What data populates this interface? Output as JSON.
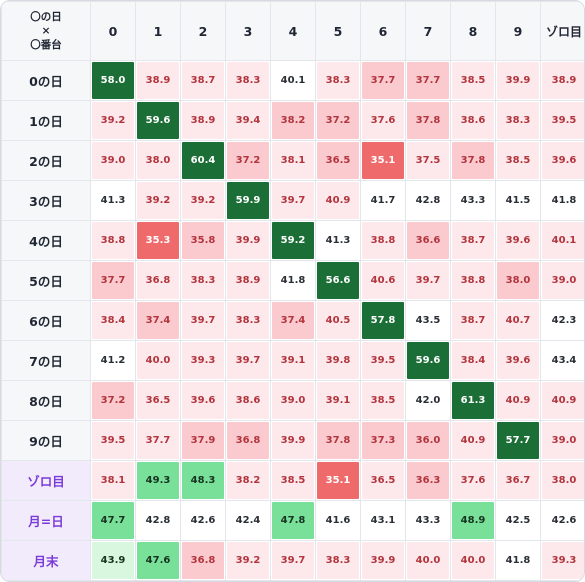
{
  "corner": {
    "line1": "〇の日",
    "line2": "×",
    "line3": "〇番台"
  },
  "columns": [
    "0",
    "1",
    "2",
    "3",
    "4",
    "5",
    "6",
    "7",
    "8",
    "9",
    "ゾロ目"
  ],
  "rows": [
    {
      "label": "0の日",
      "special": false,
      "values": [
        "58.0",
        "38.9",
        "38.7",
        "38.3",
        "40.1",
        "38.3",
        "37.7",
        "37.7",
        "38.5",
        "39.9",
        "38.9"
      ],
      "levels": [
        "g3",
        "r1",
        "r1",
        "r1",
        "n",
        "r1",
        "r2",
        "r2",
        "r1",
        "r1",
        "r1"
      ]
    },
    {
      "label": "1の日",
      "special": false,
      "values": [
        "39.2",
        "59.6",
        "38.9",
        "39.4",
        "38.2",
        "37.2",
        "37.6",
        "37.8",
        "38.6",
        "38.3",
        "39.5"
      ],
      "levels": [
        "r1",
        "g3",
        "r1",
        "r1",
        "r2",
        "r2",
        "r1",
        "r2",
        "r1",
        "r1",
        "r1"
      ]
    },
    {
      "label": "2の日",
      "special": false,
      "values": [
        "39.0",
        "38.0",
        "60.4",
        "37.2",
        "38.1",
        "36.5",
        "35.1",
        "37.5",
        "37.8",
        "38.5",
        "39.6"
      ],
      "levels": [
        "r1",
        "r1",
        "g3",
        "r2",
        "r1",
        "r2",
        "r3",
        "r1",
        "r2",
        "r1",
        "r1"
      ]
    },
    {
      "label": "3の日",
      "special": false,
      "values": [
        "41.3",
        "39.2",
        "39.2",
        "59.9",
        "39.7",
        "40.9",
        "41.7",
        "42.8",
        "43.3",
        "41.5",
        "41.8"
      ],
      "levels": [
        "n",
        "r1",
        "r1",
        "g3",
        "r1",
        "r1",
        "n",
        "n",
        "n",
        "n",
        "n"
      ]
    },
    {
      "label": "4の日",
      "special": false,
      "values": [
        "38.8",
        "35.3",
        "35.8",
        "39.9",
        "59.2",
        "41.3",
        "38.8",
        "36.6",
        "38.7",
        "39.6",
        "40.1"
      ],
      "levels": [
        "r1",
        "r3",
        "r2",
        "r1",
        "g3",
        "n",
        "r1",
        "r2",
        "r1",
        "r1",
        "r1"
      ]
    },
    {
      "label": "5の日",
      "special": false,
      "values": [
        "37.7",
        "36.8",
        "38.3",
        "38.9",
        "41.8",
        "56.6",
        "40.6",
        "39.7",
        "38.8",
        "38.0",
        "39.0"
      ],
      "levels": [
        "r2",
        "r1",
        "r1",
        "r1",
        "n",
        "g3",
        "r1",
        "r1",
        "r1",
        "r2",
        "r1"
      ]
    },
    {
      "label": "6の日",
      "special": false,
      "values": [
        "38.4",
        "37.4",
        "39.7",
        "38.3",
        "37.4",
        "40.5",
        "57.8",
        "43.5",
        "38.7",
        "40.7",
        "42.3"
      ],
      "levels": [
        "r1",
        "r2",
        "r1",
        "r1",
        "r2",
        "r1",
        "g3",
        "n",
        "r1",
        "r1",
        "n"
      ]
    },
    {
      "label": "7の日",
      "special": false,
      "values": [
        "41.2",
        "40.0",
        "39.3",
        "39.7",
        "39.1",
        "39.8",
        "39.5",
        "59.6",
        "38.4",
        "39.6",
        "43.4"
      ],
      "levels": [
        "n",
        "r1",
        "r1",
        "r1",
        "r1",
        "r1",
        "r1",
        "g3",
        "r1",
        "r1",
        "n"
      ]
    },
    {
      "label": "8の日",
      "special": false,
      "values": [
        "37.2",
        "36.5",
        "39.6",
        "38.6",
        "39.0",
        "39.1",
        "38.5",
        "42.0",
        "61.3",
        "40.9",
        "40.9"
      ],
      "levels": [
        "r2",
        "r1",
        "r1",
        "r1",
        "r1",
        "r1",
        "r1",
        "n",
        "g3",
        "r1",
        "r1"
      ]
    },
    {
      "label": "9の日",
      "special": false,
      "values": [
        "39.5",
        "37.7",
        "37.9",
        "36.8",
        "39.9",
        "37.8",
        "37.3",
        "36.0",
        "40.9",
        "57.7",
        "39.0"
      ],
      "levels": [
        "r1",
        "r1",
        "r2",
        "r2",
        "r1",
        "r2",
        "r2",
        "r2",
        "r1",
        "g3",
        "r1"
      ]
    },
    {
      "label": "ゾロ目",
      "special": true,
      "values": [
        "38.1",
        "49.3",
        "48.3",
        "38.2",
        "38.5",
        "35.1",
        "36.5",
        "36.3",
        "37.6",
        "36.7",
        "38.0"
      ],
      "levels": [
        "r1",
        "g2",
        "g2",
        "r1",
        "r1",
        "r3",
        "r1",
        "r2",
        "r1",
        "r1",
        "r1"
      ]
    },
    {
      "label": "月=日",
      "special": true,
      "values": [
        "47.7",
        "42.8",
        "42.6",
        "42.4",
        "47.8",
        "41.6",
        "43.1",
        "43.3",
        "48.9",
        "42.5",
        "42.6"
      ],
      "levels": [
        "g2",
        "n",
        "n",
        "n",
        "g2",
        "n",
        "n",
        "n",
        "g2",
        "n",
        "n"
      ]
    },
    {
      "label": "月末",
      "special": true,
      "values": [
        "43.9",
        "47.6",
        "36.8",
        "39.2",
        "39.7",
        "38.3",
        "39.9",
        "40.0",
        "40.0",
        "41.8",
        "39.3"
      ],
      "levels": [
        "g1",
        "g2",
        "r2",
        "r1",
        "r1",
        "r1",
        "r1",
        "r1",
        "r1",
        "n",
        "r1"
      ]
    }
  ]
}
